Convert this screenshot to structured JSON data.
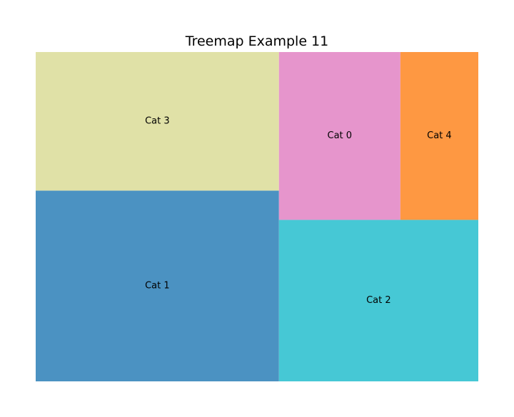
{
  "chart_data": {
    "type": "treemap",
    "title": "Treemap Example 11",
    "items": [
      {
        "label": "Cat 0",
        "value": 16.2,
        "color": "#e695cc"
      },
      {
        "label": "Cat 1",
        "value": 36.9,
        "color": "#4b92c2"
      },
      {
        "label": "Cat 2",
        "value": 25.6,
        "color": "#46c8d5"
      },
      {
        "label": "Cat 3",
        "value": 26.8,
        "color": "#e0e1a7"
      },
      {
        "label": "Cat 4",
        "value": 10.4,
        "color": "#fe9842"
      }
    ],
    "axes": "off",
    "legend": "none",
    "grid": false
  }
}
